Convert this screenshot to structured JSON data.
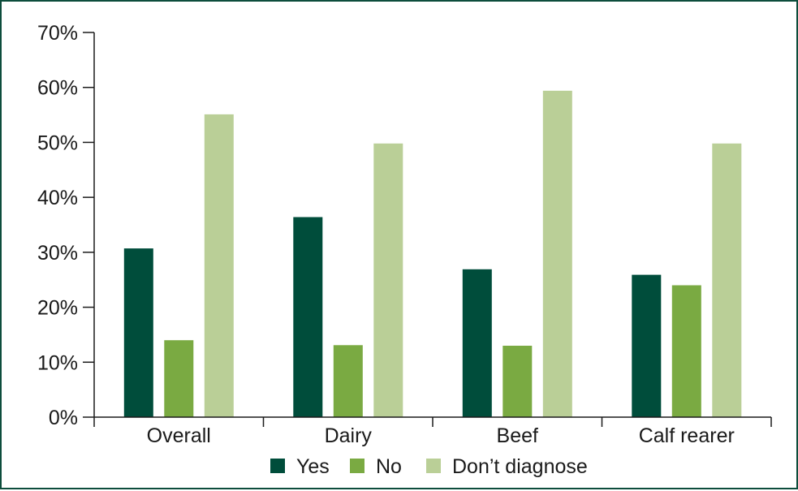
{
  "chart_data": {
    "type": "bar",
    "title": "",
    "xlabel": "",
    "ylabel": "",
    "categories": [
      "Overall",
      "Dairy",
      "Beef",
      "Calf rearer"
    ],
    "series": [
      {
        "name": "Yes",
        "color": "#004d3b",
        "values": [
          30.7,
          36.4,
          26.9,
          25.9
        ]
      },
      {
        "name": "No",
        "color": "#7aaa42",
        "values": [
          14.0,
          13.1,
          13.0,
          24.0
        ]
      },
      {
        "name": "Don’t diagnose",
        "color": "#bacf97",
        "values": [
          55.1,
          49.8,
          59.4,
          49.8
        ]
      }
    ],
    "ylim": [
      0,
      70
    ],
    "yticks": [
      0,
      10,
      20,
      30,
      40,
      50,
      60,
      70
    ],
    "ytick_labels": [
      "0%",
      "10%",
      "20%",
      "30%",
      "40%",
      "50%",
      "60%",
      "70%"
    ],
    "grid": false,
    "legend_position": "bottom"
  }
}
